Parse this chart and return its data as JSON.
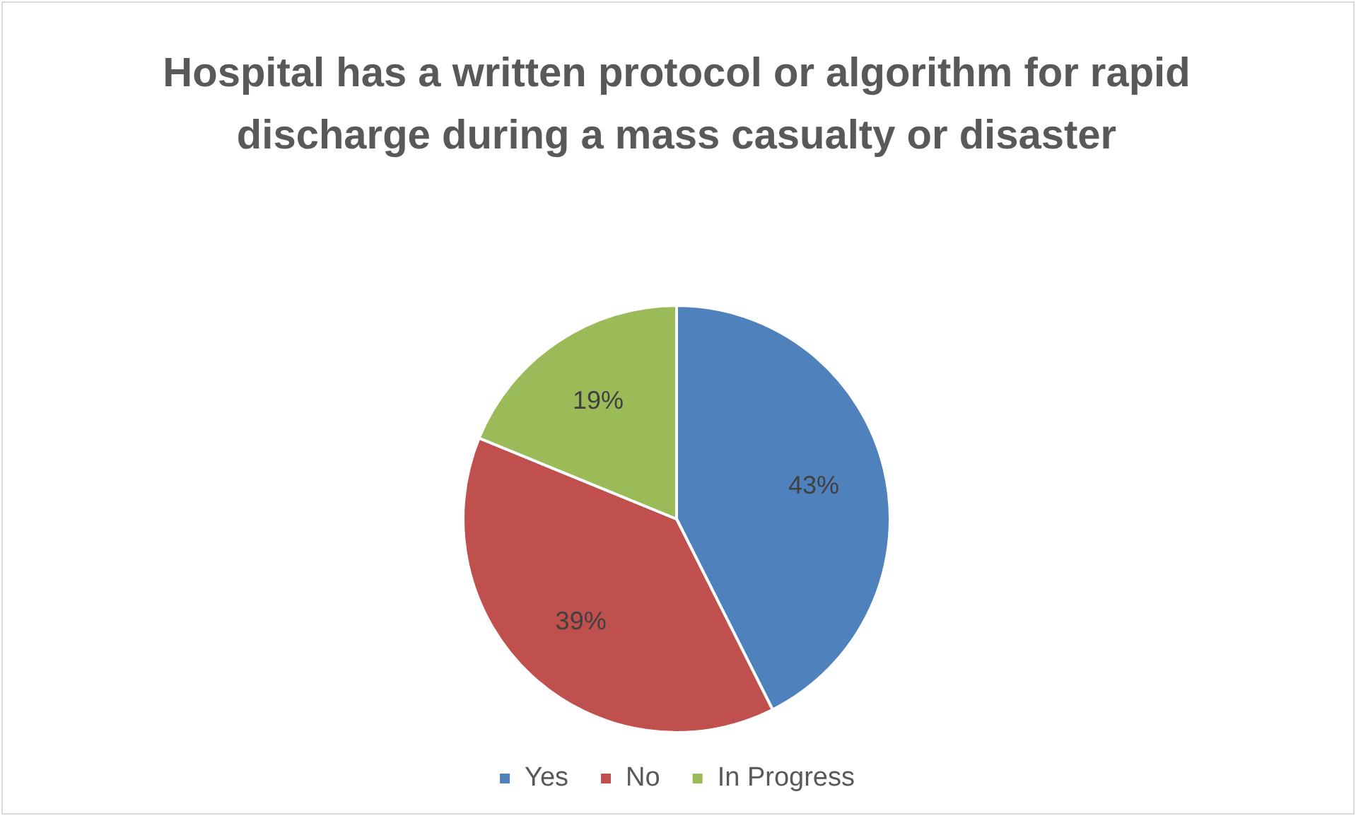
{
  "chart_data": {
    "type": "pie",
    "title": "Hospital has a written protocol or algorithm for rapid discharge during a mass casualty or disaster",
    "categories": [
      "Yes",
      "No",
      "In Progress"
    ],
    "values": [
      43,
      39,
      19
    ],
    "value_labels": [
      "43%",
      "39%",
      "19%"
    ],
    "colors": [
      "#4f81bd",
      "#c0504d",
      "#9bbb59"
    ],
    "legend": "bottom"
  }
}
